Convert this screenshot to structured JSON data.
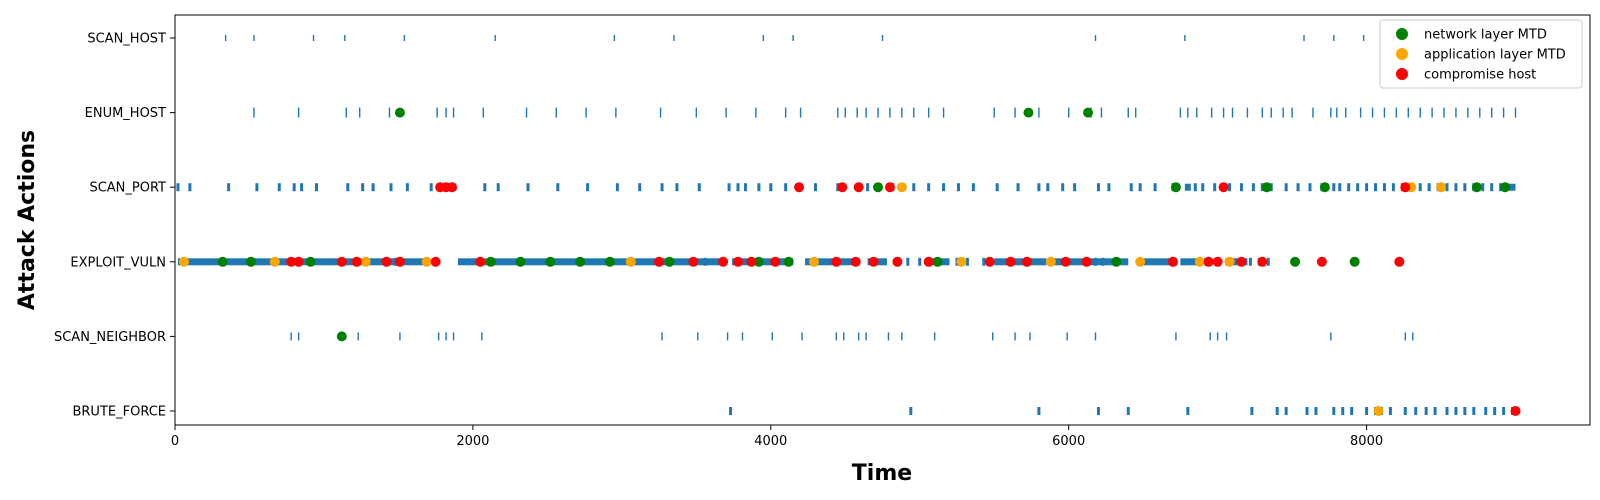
{
  "chart_data": {
    "type": "scatter",
    "title": "",
    "xlabel": "Time",
    "ylabel": "Attack Actions",
    "xlim": [
      0,
      9500
    ],
    "x_ticks": [
      0,
      2000,
      4000,
      6000,
      8000
    ],
    "categories": [
      "BRUTE_FORCE",
      "SCAN_NEIGHBOR",
      "EXPLOIT_VULN",
      "SCAN_PORT",
      "ENUM_HOST",
      "SCAN_HOST"
    ],
    "legend_position": "top-right",
    "grid": false,
    "attack_color": "#1f77b4",
    "attack_actions": [
      {
        "action": "SCAN_HOST",
        "times": [
          340,
          530,
          930,
          1140,
          1540,
          2150,
          2950,
          3350,
          3950,
          4150,
          4750,
          6180,
          6780,
          7580,
          7780,
          7980,
          8180
        ]
      },
      {
        "action": "ENUM_HOST",
        "times": [
          530,
          830,
          1150,
          1240,
          1440,
          1760,
          1820,
          1870,
          2070,
          2360,
          2560,
          2760,
          2960,
          3260,
          3500,
          3700,
          3900,
          4100,
          4200,
          4450,
          4500,
          4580,
          4640,
          4720,
          4800,
          4880,
          4960,
          5060,
          5160,
          5500,
          5640,
          5800,
          6000,
          6150,
          6220,
          6400,
          6450,
          6750,
          6800,
          6860,
          6960,
          7040,
          7100,
          7200,
          7300,
          7360,
          7440,
          7500,
          7640,
          7760,
          7800,
          7860,
          7960,
          8040,
          8120,
          8200,
          8280,
          8360,
          8440,
          8520,
          8600,
          8680,
          8760,
          8840,
          8920,
          9000
        ],
        "dense_ranges": []
      },
      {
        "action": "SCAN_PORT",
        "times": [
          20,
          100,
          360,
          550,
          700,
          800,
          850,
          950,
          1160,
          1260,
          1330,
          1450,
          1560,
          1720,
          2080,
          2170,
          2370,
          2570,
          2770,
          2970,
          3120,
          3270,
          3370,
          3520,
          3720,
          3780,
          3830,
          3920,
          4000,
          4100,
          4300,
          4450,
          4650,
          4820,
          4960,
          5060,
          5160,
          5260,
          5360,
          5520,
          5660,
          5800,
          5860,
          5960,
          6040,
          6200,
          6270,
          6420,
          6480,
          6580,
          6700,
          6850,
          6900,
          6980,
          7080,
          7160,
          7240,
          7300,
          7360,
          7460,
          7540,
          7620,
          7700,
          7780,
          7820,
          7880,
          7940,
          8000,
          8060,
          8120,
          8180,
          8240,
          8300,
          8360,
          8420,
          8480,
          8540,
          8600,
          8660,
          8720,
          8780,
          8840,
          8900
        ],
        "dense_ranges": [
          [
            1780,
            1890
          ],
          [
            6780,
            6820
          ],
          [
            8900,
            9000
          ]
        ]
      },
      {
        "action": "EXPLOIT_VULN",
        "times": [
          1430,
          1480,
          3560,
          4860,
          4920,
          5000,
          5250,
          5320,
          5430,
          6180,
          6230,
          6310,
          6870,
          6920,
          7220,
          7280,
          7340
        ],
        "dense_ranges": [
          [
            20,
            1700
          ],
          [
            1900,
            3700
          ],
          [
            3740,
            4150
          ],
          [
            4230,
            4600
          ],
          [
            4650,
            4780
          ],
          [
            5050,
            5200
          ],
          [
            5500,
            5850
          ],
          [
            5900,
            6400
          ],
          [
            6500,
            6730
          ],
          [
            6750,
            6860
          ],
          [
            7050,
            7200
          ]
        ]
      },
      {
        "action": "SCAN_NEIGHBOR",
        "times": [
          780,
          830,
          1230,
          1510,
          1770,
          1820,
          1870,
          2060,
          3270,
          3510,
          3710,
          3810,
          4010,
          4210,
          4440,
          4490,
          4590,
          4640,
          4790,
          4880,
          5100,
          5490,
          5640,
          5740,
          5990,
          6180,
          6720,
          6950,
          7000,
          7060,
          7760,
          8260,
          8310
        ]
      },
      {
        "action": "BRUTE_FORCE",
        "times": [
          3730,
          4940,
          5800,
          6200,
          6400,
          6800,
          7230,
          7400,
          7460,
          7600,
          7660,
          7780,
          7840,
          7900,
          8000,
          8060,
          8100,
          8160,
          8260,
          8330,
          8400,
          8460,
          8540,
          8600,
          8660,
          8720,
          8800,
          8860,
          8920,
          8980
        ]
      }
    ],
    "series": [
      {
        "name": "network layer MTD",
        "color": "#008000",
        "points": [
          {
            "x": 1510,
            "y": "ENUM_HOST"
          },
          {
            "x": 5730,
            "y": "ENUM_HOST"
          },
          {
            "x": 6130,
            "y": "ENUM_HOST"
          },
          {
            "x": 4720,
            "y": "SCAN_PORT"
          },
          {
            "x": 6720,
            "y": "SCAN_PORT"
          },
          {
            "x": 7330,
            "y": "SCAN_PORT"
          },
          {
            "x": 7720,
            "y": "SCAN_PORT"
          },
          {
            "x": 8740,
            "y": "SCAN_PORT"
          },
          {
            "x": 8930,
            "y": "SCAN_PORT"
          },
          {
            "x": 320,
            "y": "EXPLOIT_VULN"
          },
          {
            "x": 510,
            "y": "EXPLOIT_VULN"
          },
          {
            "x": 910,
            "y": "EXPLOIT_VULN"
          },
          {
            "x": 2120,
            "y": "EXPLOIT_VULN"
          },
          {
            "x": 2320,
            "y": "EXPLOIT_VULN"
          },
          {
            "x": 2520,
            "y": "EXPLOIT_VULN"
          },
          {
            "x": 2720,
            "y": "EXPLOIT_VULN"
          },
          {
            "x": 2920,
            "y": "EXPLOIT_VULN"
          },
          {
            "x": 3320,
            "y": "EXPLOIT_VULN"
          },
          {
            "x": 3920,
            "y": "EXPLOIT_VULN"
          },
          {
            "x": 4120,
            "y": "EXPLOIT_VULN"
          },
          {
            "x": 5120,
            "y": "EXPLOIT_VULN"
          },
          {
            "x": 6320,
            "y": "EXPLOIT_VULN"
          },
          {
            "x": 7520,
            "y": "EXPLOIT_VULN"
          },
          {
            "x": 7920,
            "y": "EXPLOIT_VULN"
          },
          {
            "x": 1120,
            "y": "SCAN_NEIGHBOR"
          }
        ]
      },
      {
        "name": "application layer MTD",
        "color": "#ffa500",
        "points": [
          {
            "x": 4880,
            "y": "SCAN_PORT"
          },
          {
            "x": 8300,
            "y": "SCAN_PORT"
          },
          {
            "x": 8500,
            "y": "SCAN_PORT"
          },
          {
            "x": 60,
            "y": "EXPLOIT_VULN"
          },
          {
            "x": 670,
            "y": "EXPLOIT_VULN"
          },
          {
            "x": 1280,
            "y": "EXPLOIT_VULN"
          },
          {
            "x": 1690,
            "y": "EXPLOIT_VULN"
          },
          {
            "x": 3060,
            "y": "EXPLOIT_VULN"
          },
          {
            "x": 4290,
            "y": "EXPLOIT_VULN"
          },
          {
            "x": 5280,
            "y": "EXPLOIT_VULN"
          },
          {
            "x": 5880,
            "y": "EXPLOIT_VULN"
          },
          {
            "x": 6480,
            "y": "EXPLOIT_VULN"
          },
          {
            "x": 6880,
            "y": "EXPLOIT_VULN"
          },
          {
            "x": 7080,
            "y": "EXPLOIT_VULN"
          },
          {
            "x": 8080,
            "y": "BRUTE_FORCE"
          }
        ]
      },
      {
        "name": "compromise host",
        "color": "#ff0000",
        "points": [
          {
            "x": 1780,
            "y": "SCAN_PORT"
          },
          {
            "x": 1820,
            "y": "SCAN_PORT"
          },
          {
            "x": 1860,
            "y": "SCAN_PORT"
          },
          {
            "x": 4190,
            "y": "SCAN_PORT"
          },
          {
            "x": 4480,
            "y": "SCAN_PORT"
          },
          {
            "x": 4590,
            "y": "SCAN_PORT"
          },
          {
            "x": 4800,
            "y": "SCAN_PORT"
          },
          {
            "x": 7040,
            "y": "SCAN_PORT"
          },
          {
            "x": 8260,
            "y": "SCAN_PORT"
          },
          {
            "x": 780,
            "y": "EXPLOIT_VULN"
          },
          {
            "x": 830,
            "y": "EXPLOIT_VULN"
          },
          {
            "x": 1120,
            "y": "EXPLOIT_VULN"
          },
          {
            "x": 1220,
            "y": "EXPLOIT_VULN"
          },
          {
            "x": 1420,
            "y": "EXPLOIT_VULN"
          },
          {
            "x": 1510,
            "y": "EXPLOIT_VULN"
          },
          {
            "x": 1750,
            "y": "EXPLOIT_VULN"
          },
          {
            "x": 2050,
            "y": "EXPLOIT_VULN"
          },
          {
            "x": 3250,
            "y": "EXPLOIT_VULN"
          },
          {
            "x": 3480,
            "y": "EXPLOIT_VULN"
          },
          {
            "x": 3680,
            "y": "EXPLOIT_VULN"
          },
          {
            "x": 3780,
            "y": "EXPLOIT_VULN"
          },
          {
            "x": 3870,
            "y": "EXPLOIT_VULN"
          },
          {
            "x": 4030,
            "y": "EXPLOIT_VULN"
          },
          {
            "x": 4440,
            "y": "EXPLOIT_VULN"
          },
          {
            "x": 4570,
            "y": "EXPLOIT_VULN"
          },
          {
            "x": 4690,
            "y": "EXPLOIT_VULN"
          },
          {
            "x": 4850,
            "y": "EXPLOIT_VULN"
          },
          {
            "x": 5060,
            "y": "EXPLOIT_VULN"
          },
          {
            "x": 5470,
            "y": "EXPLOIT_VULN"
          },
          {
            "x": 5610,
            "y": "EXPLOIT_VULN"
          },
          {
            "x": 5720,
            "y": "EXPLOIT_VULN"
          },
          {
            "x": 5980,
            "y": "EXPLOIT_VULN"
          },
          {
            "x": 6120,
            "y": "EXPLOIT_VULN"
          },
          {
            "x": 6700,
            "y": "EXPLOIT_VULN"
          },
          {
            "x": 6940,
            "y": "EXPLOIT_VULN"
          },
          {
            "x": 7000,
            "y": "EXPLOIT_VULN"
          },
          {
            "x": 7160,
            "y": "EXPLOIT_VULN"
          },
          {
            "x": 7300,
            "y": "EXPLOIT_VULN"
          },
          {
            "x": 7700,
            "y": "EXPLOIT_VULN"
          },
          {
            "x": 8220,
            "y": "EXPLOIT_VULN"
          },
          {
            "x": 9000,
            "y": "BRUTE_FORCE"
          }
        ]
      }
    ]
  }
}
